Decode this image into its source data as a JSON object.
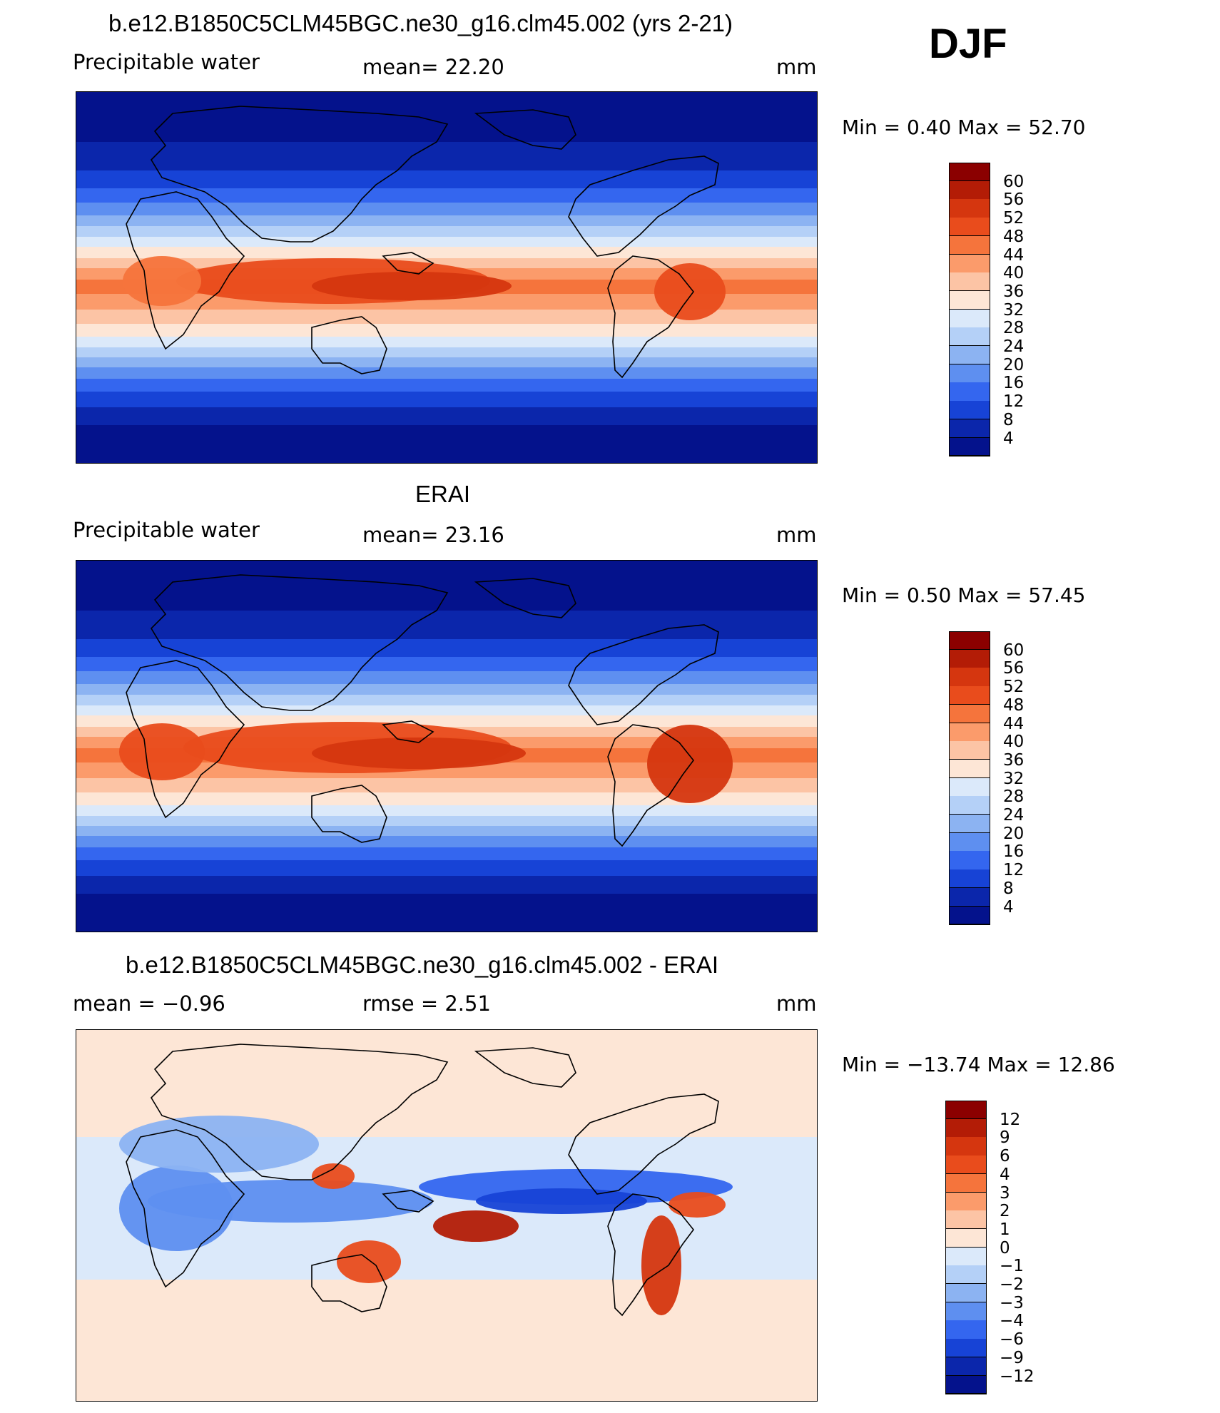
{
  "header": {
    "season": "DJF"
  },
  "panels": [
    {
      "title": "b.e12.B1850C5CLM45BGC.ne30_g16.clm45.002 (yrs 2-21)",
      "left_label": "Precipitable  water",
      "center_label": "mean=   22.20",
      "units": "mm",
      "min_text": "Min  =      0.40  Max  =    52.70",
      "map_type": "field"
    },
    {
      "title": "ERAI",
      "left_label": "Precipitable  water",
      "center_label": "mean=   23.16",
      "units": "mm",
      "min_text": "Min  =      0.50  Max  =    57.45",
      "map_type": "field"
    },
    {
      "title": "b.e12.B1850C5CLM45BGC.ne30_g16.clm45.002 - ERAI",
      "left_label": "mean  =    −0.96",
      "center_label": "rmse  =     2.51",
      "units": "mm",
      "min_text": "Min  = −13.74  Max  =    12.86",
      "map_type": "diff"
    }
  ],
  "colorbars": {
    "field": {
      "labels": [
        "60",
        "56",
        "52",
        "48",
        "44",
        "40",
        "36",
        "32",
        "28",
        "24",
        "20",
        "16",
        "12",
        "8",
        "4"
      ],
      "colors": [
        "#8b0000",
        "#b31c06",
        "#d5360f",
        "#e94c1c",
        "#f5743c",
        "#fb9b6b",
        "#fcc4a5",
        "#fde6d6",
        "#dbe9fa",
        "#b4d0f7",
        "#8cb3f2",
        "#5e8ff0",
        "#3466ef",
        "#1743d6",
        "#0b26ab",
        "#04128c"
      ]
    },
    "diff": {
      "labels": [
        "12",
        "9",
        "6",
        "4",
        "3",
        "2",
        "1",
        "0",
        "−1",
        "−2",
        "−3",
        "−4",
        "−6",
        "−9",
        "−12"
      ],
      "colors": [
        "#8b0000",
        "#b31c06",
        "#d5360f",
        "#e94c1c",
        "#f5743c",
        "#fb9b6b",
        "#fcc4a5",
        "#fde6d6",
        "#dbe9fa",
        "#b4d0f7",
        "#8cb3f2",
        "#5e8ff0",
        "#3466ef",
        "#1743d6",
        "#0b26ab",
        "#04128c"
      ]
    }
  }
}
